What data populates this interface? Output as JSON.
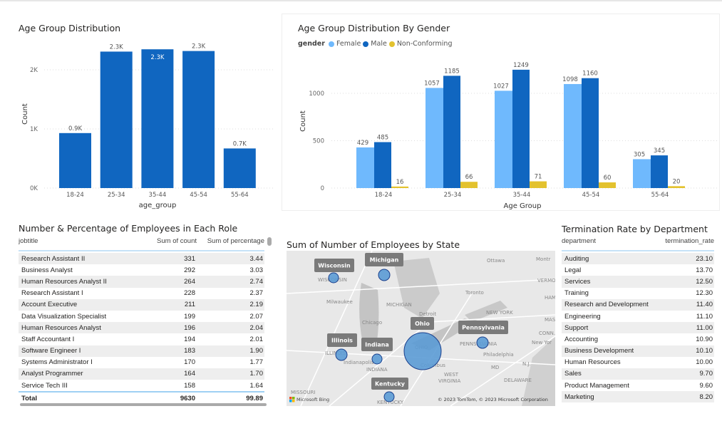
{
  "age_chart": {
    "title": "Age Group Distribution",
    "chart_data": {
      "type": "bar",
      "title": "Age Group Distribution",
      "xlabel": "age_group",
      "ylabel": "Count",
      "categories": [
        "18-24",
        "25-34",
        "35-44",
        "45-54",
        "55-64"
      ],
      "values": [
        930,
        2308,
        2347,
        2318,
        670
      ],
      "data_labels": [
        "0.9K",
        "2.3K",
        "2.3K",
        "2.3K",
        "0.7K"
      ],
      "yticks": [
        "0K",
        "1K",
        "2K"
      ],
      "ytick_values": [
        0,
        1000,
        2000
      ],
      "ylim": [
        0,
        2400
      ],
      "grid": true,
      "color": "#1066C0"
    }
  },
  "gender_chart": {
    "title": "Age Group Distribution By Gender",
    "legend_title": "gender",
    "chart_data": {
      "type": "bar",
      "title": "Age Group Distribution By Gender",
      "xlabel": "Age Group",
      "ylabel": "Count",
      "categories": [
        "18-24",
        "25-34",
        "35-44",
        "45-54",
        "55-64"
      ],
      "series": [
        {
          "name": "Female",
          "color": "#6FB9FD",
          "values": [
            429,
            1057,
            1027,
            1098,
            305
          ]
        },
        {
          "name": "Male",
          "color": "#1066C0",
          "values": [
            485,
            1185,
            1249,
            1160,
            345
          ]
        },
        {
          "name": "Non-Conforming",
          "color": "#E3C22E",
          "values": [
            16,
            66,
            71,
            60,
            20
          ]
        }
      ],
      "yticks": [
        "0",
        "500",
        "1000"
      ],
      "ytick_values": [
        0,
        500,
        1000
      ],
      "ylim": [
        0,
        1300
      ],
      "grid": true,
      "legend": "top-left"
    }
  },
  "roles_table": {
    "title": "Number & Percentage of Employees in Each Role",
    "columns": [
      "jobtitle",
      "Sum of count",
      "Sum of percentage"
    ],
    "rows": [
      [
        "Research Assistant II",
        "331",
        "3.44"
      ],
      [
        "Business Analyst",
        "292",
        "3.03"
      ],
      [
        "Human Resources Analyst II",
        "264",
        "2.74"
      ],
      [
        "Research Assistant I",
        "228",
        "2.37"
      ],
      [
        "Account Executive",
        "211",
        "2.19"
      ],
      [
        "Data Visualization Specialist",
        "199",
        "2.07"
      ],
      [
        "Human Resources Analyst",
        "196",
        "2.04"
      ],
      [
        "Staff Accountant I",
        "194",
        "2.01"
      ],
      [
        "Software Engineer I",
        "183",
        "1.90"
      ],
      [
        "Systems Administrator I",
        "170",
        "1.77"
      ],
      [
        "Analyst Programmer",
        "164",
        "1.70"
      ],
      [
        "Service Tech III",
        "158",
        "1.64"
      ]
    ],
    "total": [
      "Total",
      "9630",
      "99.89"
    ]
  },
  "map": {
    "title": "Sum of Number of Employees by State",
    "states": [
      "Wisconsin",
      "Michigan",
      "Ohio",
      "Pennsylvania",
      "Illinois",
      "Indiana",
      "Kentucky"
    ],
    "places": [
      "Ottawa",
      "Montr",
      "WISCONSIN",
      "VERMO",
      "Toronto",
      "HAM",
      "Milwaukee",
      "MICHIGAN",
      "Detroit",
      "NEW YORK",
      "MAS",
      "Chicago",
      "CONN.",
      "ILLINOIS",
      "OHIO",
      "PENNSYLVANIA",
      "New Yor",
      "Philadelphia",
      "Indianapolis",
      "INDIANA",
      "Columbus",
      "WEST",
      "VIRGINIA",
      "MD",
      "DELAWARE",
      "N.J.",
      "MISSOURI",
      "KENTUCKY"
    ],
    "bing": "Microsoft Bing",
    "copyright": "© 2023 TomTom, © 2023 Microsoft Corporation",
    "bubble_color": "#5B9BD5"
  },
  "term_table": {
    "title": "Termination Rate by Department",
    "columns": [
      "department",
      "termination_rate"
    ],
    "rows": [
      [
        "Auditing",
        "23.10"
      ],
      [
        "Legal",
        "13.70"
      ],
      [
        "Services",
        "12.50"
      ],
      [
        "Training",
        "12.30"
      ],
      [
        "Research and Development",
        "11.40"
      ],
      [
        "Engineering",
        "11.10"
      ],
      [
        "Support",
        "11.00"
      ],
      [
        "Accounting",
        "10.90"
      ],
      [
        "Business Development",
        "10.10"
      ],
      [
        "Human Resources",
        "10.00"
      ],
      [
        "Sales",
        "9.70"
      ],
      [
        "Product Management",
        "9.60"
      ],
      [
        "Marketing",
        "8.20"
      ]
    ]
  }
}
